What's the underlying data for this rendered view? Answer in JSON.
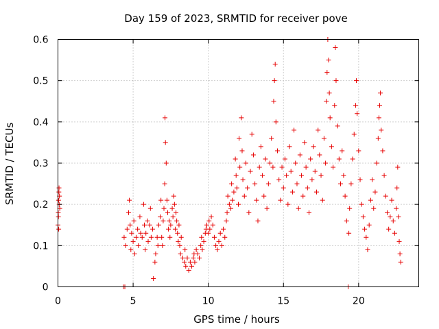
{
  "chart_data": {
    "type": "scatter",
    "title": "Day 159 of 2023, SRMTID for receiver pove",
    "xlabel": "GPS time / hours",
    "ylabel": "SRMTID / TECUs",
    "xlim": [
      0,
      24
    ],
    "ylim": [
      0,
      0.6
    ],
    "x_ticks": [
      0,
      5,
      10,
      15,
      20
    ],
    "x_tick_labels": [
      "0",
      "5",
      "10",
      "15",
      "20"
    ],
    "y_ticks": [
      0,
      0.1,
      0.2,
      0.3,
      0.4,
      0.5,
      0.6
    ],
    "y_tick_labels": [
      "0",
      "0.1",
      "0.2",
      "0.3",
      "0.4",
      "0.5",
      "0.6"
    ],
    "grid": true,
    "marker": "+",
    "color": "#e60000",
    "series": [
      {
        "name": "SRMTID",
        "points": [
          [
            0.0,
            0.15
          ],
          [
            0.02,
            0.18
          ],
          [
            0.04,
            0.21
          ],
          [
            0.06,
            0.23
          ],
          [
            0.08,
            0.2
          ],
          [
            0.1,
            0.22
          ],
          [
            0.12,
            0.19
          ],
          [
            0.03,
            0.17
          ],
          [
            0.07,
            0.24
          ],
          [
            0.05,
            0.14
          ],
          [
            4.35,
            0.0
          ],
          [
            4.45,
            0.0
          ],
          [
            4.4,
            0.12
          ],
          [
            4.5,
            0.1
          ],
          [
            4.6,
            0.14
          ],
          [
            4.7,
            0.18
          ],
          [
            4.75,
            0.21
          ],
          [
            4.8,
            0.15
          ],
          [
            4.85,
            0.09
          ],
          [
            4.9,
            0.13
          ],
          [
            5.0,
            0.11
          ],
          [
            5.05,
            0.16
          ],
          [
            5.1,
            0.08
          ],
          [
            5.2,
            0.12
          ],
          [
            5.3,
            0.14
          ],
          [
            5.35,
            0.1
          ],
          [
            5.45,
            0.17
          ],
          [
            5.5,
            0.13
          ],
          [
            5.6,
            0.12
          ],
          [
            5.7,
            0.2
          ],
          [
            5.75,
            0.15
          ],
          [
            5.8,
            0.09
          ],
          [
            5.85,
            0.13
          ],
          [
            5.95,
            0.16
          ],
          [
            6.0,
            0.11
          ],
          [
            6.1,
            0.15
          ],
          [
            6.15,
            0.19
          ],
          [
            6.2,
            0.12
          ],
          [
            6.3,
            0.14
          ],
          [
            6.35,
            0.02
          ],
          [
            6.45,
            0.06
          ],
          [
            6.5,
            0.08
          ],
          [
            6.6,
            0.12
          ],
          [
            6.65,
            0.1
          ],
          [
            6.7,
            0.15
          ],
          [
            6.8,
            0.17
          ],
          [
            6.85,
            0.21
          ],
          [
            6.9,
            0.12
          ],
          [
            6.95,
            0.1
          ],
          [
            7.0,
            0.16
          ],
          [
            7.05,
            0.19
          ],
          [
            7.1,
            0.25
          ],
          [
            7.12,
            0.41
          ],
          [
            7.15,
            0.35
          ],
          [
            7.2,
            0.3
          ],
          [
            7.25,
            0.21
          ],
          [
            7.3,
            0.18
          ],
          [
            7.35,
            0.14
          ],
          [
            7.4,
            0.16
          ],
          [
            7.45,
            0.12
          ],
          [
            7.5,
            0.15
          ],
          [
            7.6,
            0.19
          ],
          [
            7.65,
            0.17
          ],
          [
            7.7,
            0.22
          ],
          [
            7.75,
            0.2
          ],
          [
            7.8,
            0.14
          ],
          [
            7.85,
            0.18
          ],
          [
            7.9,
            0.16
          ],
          [
            7.95,
            0.13
          ],
          [
            8.0,
            0.11
          ],
          [
            8.05,
            0.15
          ],
          [
            8.1,
            0.1
          ],
          [
            8.15,
            0.08
          ],
          [
            8.2,
            0.12
          ],
          [
            8.3,
            0.07
          ],
          [
            8.4,
            0.06
          ],
          [
            8.45,
            0.09
          ],
          [
            8.5,
            0.05
          ],
          [
            8.6,
            0.07
          ],
          [
            8.7,
            0.04
          ],
          [
            8.8,
            0.06
          ],
          [
            8.9,
            0.05
          ],
          [
            9.0,
            0.07
          ],
          [
            9.05,
            0.08
          ],
          [
            9.1,
            0.06
          ],
          [
            9.2,
            0.09
          ],
          [
            9.3,
            0.08
          ],
          [
            9.4,
            0.07
          ],
          [
            9.5,
            0.1
          ],
          [
            9.55,
            0.12
          ],
          [
            9.6,
            0.09
          ],
          [
            9.7,
            0.11
          ],
          [
            9.8,
            0.13
          ],
          [
            9.85,
            0.14
          ],
          [
            9.9,
            0.15
          ],
          [
            10.0,
            0.13
          ],
          [
            10.05,
            0.16
          ],
          [
            10.1,
            0.14
          ],
          [
            10.2,
            0.17
          ],
          [
            10.3,
            0.15
          ],
          [
            10.4,
            0.12
          ],
          [
            10.5,
            0.1
          ],
          [
            10.6,
            0.09
          ],
          [
            10.7,
            0.11
          ],
          [
            10.8,
            0.13
          ],
          [
            10.9,
            0.1
          ],
          [
            11.0,
            0.14
          ],
          [
            11.1,
            0.12
          ],
          [
            11.2,
            0.16
          ],
          [
            11.25,
            0.18
          ],
          [
            11.3,
            0.22
          ],
          [
            11.4,
            0.2
          ],
          [
            11.5,
            0.19
          ],
          [
            11.55,
            0.25
          ],
          [
            11.6,
            0.21
          ],
          [
            11.7,
            0.23
          ],
          [
            11.8,
            0.31
          ],
          [
            11.85,
            0.27
          ],
          [
            11.9,
            0.24
          ],
          [
            12.0,
            0.2
          ],
          [
            12.05,
            0.36
          ],
          [
            12.1,
            0.29
          ],
          [
            12.2,
            0.41
          ],
          [
            12.25,
            0.33
          ],
          [
            12.3,
            0.26
          ],
          [
            12.4,
            0.22
          ],
          [
            12.5,
            0.3
          ],
          [
            12.6,
            0.24
          ],
          [
            12.7,
            0.18
          ],
          [
            12.8,
            0.28
          ],
          [
            12.9,
            0.37
          ],
          [
            13.0,
            0.32
          ],
          [
            13.1,
            0.25
          ],
          [
            13.2,
            0.21
          ],
          [
            13.3,
            0.16
          ],
          [
            13.4,
            0.29
          ],
          [
            13.5,
            0.34
          ],
          [
            13.6,
            0.27
          ],
          [
            13.7,
            0.22
          ],
          [
            13.8,
            0.31
          ],
          [
            13.9,
            0.19
          ],
          [
            14.0,
            0.25
          ],
          [
            14.1,
            0.3
          ],
          [
            14.2,
            0.36
          ],
          [
            14.3,
            0.29
          ],
          [
            14.35,
            0.45
          ],
          [
            14.4,
            0.5
          ],
          [
            14.45,
            0.54
          ],
          [
            14.5,
            0.4
          ],
          [
            14.6,
            0.33
          ],
          [
            14.7,
            0.26
          ],
          [
            14.8,
            0.21
          ],
          [
            14.9,
            0.29
          ],
          [
            15.0,
            0.24
          ],
          [
            15.1,
            0.31
          ],
          [
            15.2,
            0.27
          ],
          [
            15.3,
            0.2
          ],
          [
            15.4,
            0.34
          ],
          [
            15.5,
            0.28
          ],
          [
            15.6,
            0.23
          ],
          [
            15.7,
            0.38
          ],
          [
            15.8,
            0.3
          ],
          [
            15.9,
            0.25
          ],
          [
            16.0,
            0.19
          ],
          [
            16.1,
            0.32
          ],
          [
            16.2,
            0.27
          ],
          [
            16.3,
            0.22
          ],
          [
            16.4,
            0.35
          ],
          [
            16.5,
            0.29
          ],
          [
            16.6,
            0.24
          ],
          [
            16.7,
            0.18
          ],
          [
            16.8,
            0.31
          ],
          [
            16.9,
            0.26
          ],
          [
            17.0,
            0.34
          ],
          [
            17.1,
            0.28
          ],
          [
            17.2,
            0.23
          ],
          [
            17.3,
            0.38
          ],
          [
            17.4,
            0.32
          ],
          [
            17.5,
            0.27
          ],
          [
            17.6,
            0.21
          ],
          [
            17.7,
            0.36
          ],
          [
            17.8,
            0.3
          ],
          [
            17.85,
            0.45
          ],
          [
            17.9,
            0.52
          ],
          [
            17.95,
            0.6
          ],
          [
            18.0,
            0.55
          ],
          [
            18.05,
            0.47
          ],
          [
            18.1,
            0.41
          ],
          [
            18.2,
            0.34
          ],
          [
            18.3,
            0.29
          ],
          [
            18.4,
            0.44
          ],
          [
            18.45,
            0.58
          ],
          [
            18.5,
            0.5
          ],
          [
            18.6,
            0.39
          ],
          [
            18.7,
            0.31
          ],
          [
            18.8,
            0.25
          ],
          [
            18.9,
            0.33
          ],
          [
            19.0,
            0.27
          ],
          [
            19.1,
            0.22
          ],
          [
            19.2,
            0.16
          ],
          [
            19.3,
            0.0
          ],
          [
            19.35,
            0.13
          ],
          [
            19.4,
            0.19
          ],
          [
            19.5,
            0.25
          ],
          [
            19.6,
            0.31
          ],
          [
            19.7,
            0.37
          ],
          [
            19.8,
            0.44
          ],
          [
            19.85,
            0.5
          ],
          [
            19.9,
            0.42
          ],
          [
            20.0,
            0.33
          ],
          [
            20.1,
            0.26
          ],
          [
            20.2,
            0.2
          ],
          [
            20.3,
            0.17
          ],
          [
            20.4,
            0.14
          ],
          [
            20.5,
            0.12
          ],
          [
            20.6,
            0.09
          ],
          [
            20.7,
            0.15
          ],
          [
            20.8,
            0.21
          ],
          [
            20.9,
            0.26
          ],
          [
            21.0,
            0.19
          ],
          [
            21.1,
            0.23
          ],
          [
            21.2,
            0.3
          ],
          [
            21.3,
            0.36
          ],
          [
            21.35,
            0.41
          ],
          [
            21.4,
            0.44
          ],
          [
            21.45,
            0.47
          ],
          [
            21.5,
            0.38
          ],
          [
            21.6,
            0.33
          ],
          [
            21.7,
            0.27
          ],
          [
            21.8,
            0.22
          ],
          [
            21.9,
            0.18
          ],
          [
            22.0,
            0.14
          ],
          [
            22.1,
            0.17
          ],
          [
            22.2,
            0.21
          ],
          [
            22.3,
            0.16
          ],
          [
            22.4,
            0.13
          ],
          [
            22.5,
            0.19
          ],
          [
            22.55,
            0.24
          ],
          [
            22.6,
            0.29
          ],
          [
            22.65,
            0.17
          ],
          [
            22.7,
            0.11
          ],
          [
            22.75,
            0.08
          ],
          [
            22.8,
            0.06
          ]
        ]
      }
    ]
  }
}
